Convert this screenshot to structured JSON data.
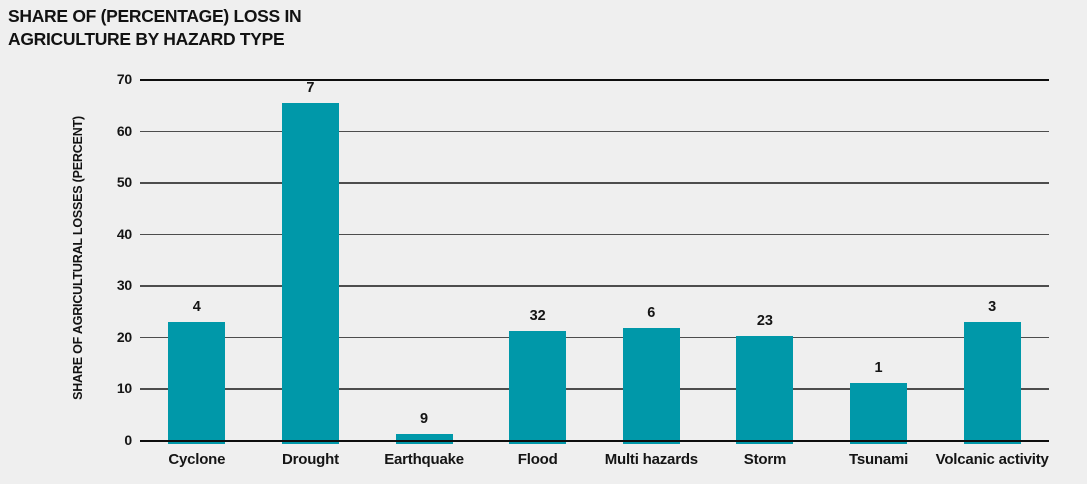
{
  "title": {
    "lines": [
      "SHARE OF (PERCENTAGE) LOSS IN",
      "AGRICULTURE BY HAZARD TYPE"
    ]
  },
  "chart_data": {
    "type": "bar",
    "title": "SHARE OF (PERCENTAGE) LOSS IN AGRICULTURE BY HAZARD TYPE",
    "xlabel": "",
    "ylabel": "SHARE OF AGRICULTURAL LOSSES (PERCENT)",
    "categories": [
      "Cyclone",
      "Drought",
      "Earthquake",
      "Flood",
      "Multi hazards",
      "Storm",
      "Tsunami",
      "Volcanic activity"
    ],
    "values": [
      23.1,
      65.5,
      1.4,
      21.3,
      22.0,
      20.3,
      11.2,
      23.1
    ],
    "bar_labels": [
      "4",
      "7",
      "9",
      "32",
      "6",
      "23",
      "1",
      "3"
    ],
    "ylim": [
      0,
      70
    ],
    "yticks": [
      0,
      10,
      20,
      30,
      40,
      50,
      60,
      70
    ],
    "grid": true,
    "legend": null,
    "colors": {
      "bar": "#0098a9",
      "grid": "#4d4d4d",
      "axis": "#0e0e0e",
      "text": "#151515",
      "background": "#efefef"
    }
  }
}
